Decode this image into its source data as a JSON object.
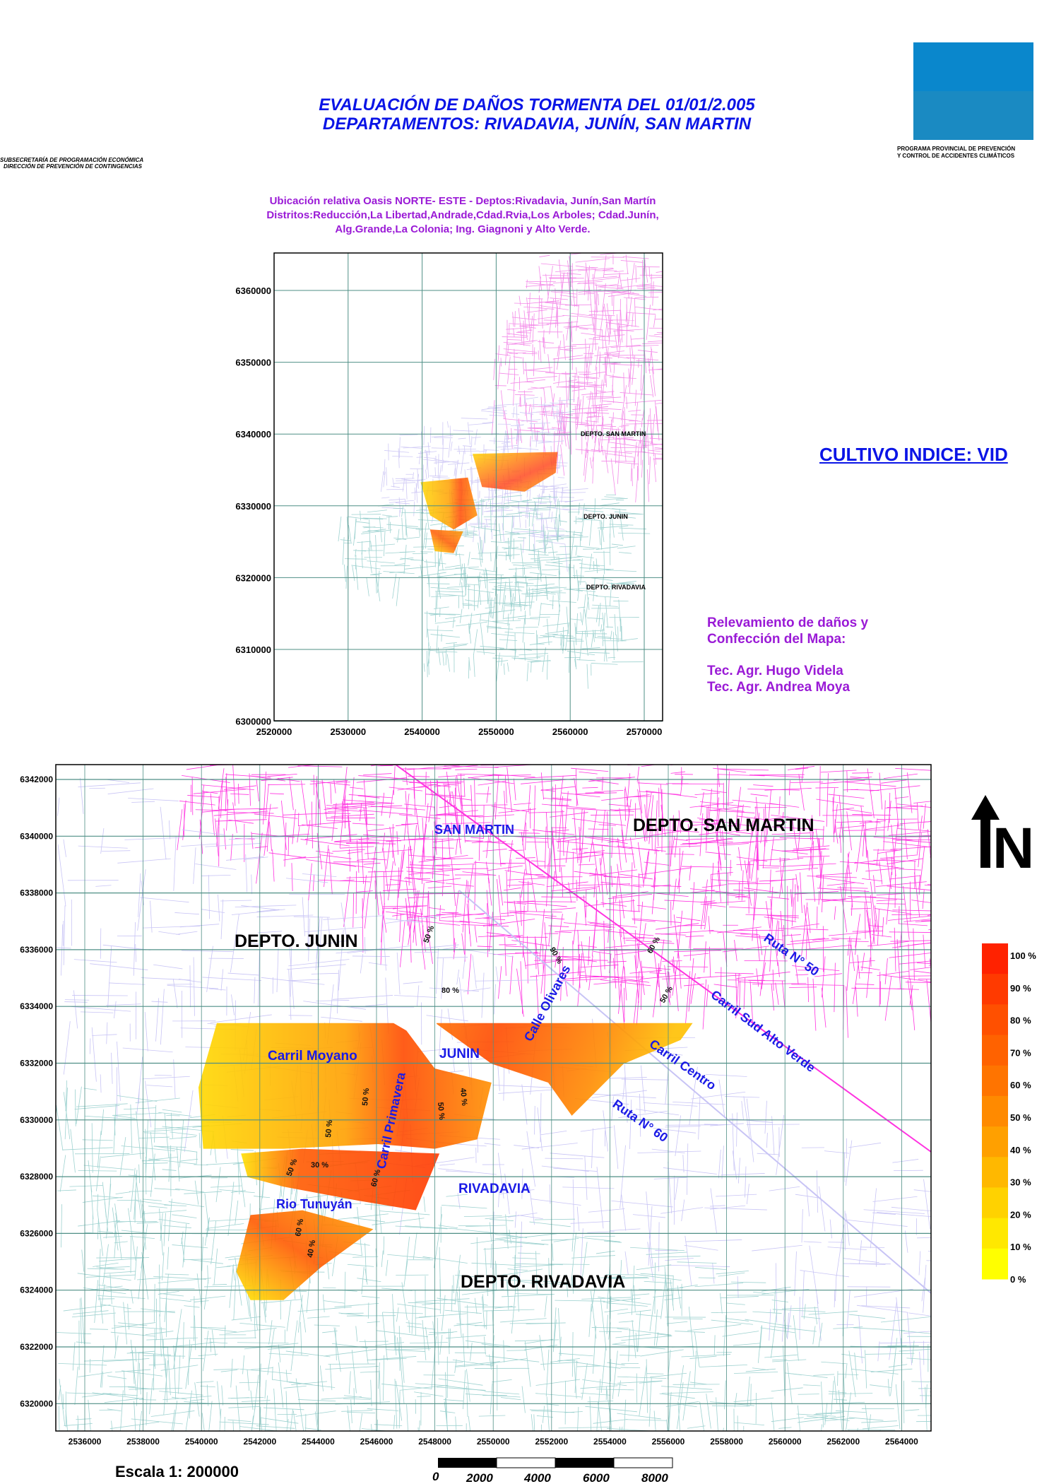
{
  "header": {
    "title_line1": "EVALUACIÓN DE DAÑOS TORMENTA DEL 01/01/2.005",
    "title_line2": "DEPARTAMENTOS: RIVADAVIA,  JUNÍN,  SAN MARTIN",
    "left_org_line1": "SUBSECRETARÍA DE PROGRAMACIÓN ECONÓMICA",
    "left_org_line2": "DIRECCIÓN DE PREVENCIÓN DE CONTINGENCIAS",
    "right_org_line1": "PROGRAMA PROVINCIAL DE PREVENCIÓN",
    "right_org_line2": "Y CONTROL DE ACCIDENTES CLIMÁTICOS",
    "logo_color": "#0a87cc"
  },
  "location_map": {
    "subtitle_lines": [
      "Ubicación relativa Oasis NORTE- ESTE - Deptos:Rivadavia, Junín,San Martín",
      "Distritos:Reducción,La Libertad,Andrade,Cdad.Rvia,Los Arboles; Cdad.Junín,",
      "Alg.Grande,La Colonia; Ing. Giagnoni y Alto Verde."
    ],
    "y_ticks": [
      "6360000",
      "6350000",
      "6340000",
      "6330000",
      "6320000",
      "6310000",
      "6300000"
    ],
    "x_ticks": [
      "2520000",
      "2530000",
      "2540000",
      "2550000",
      "2560000",
      "2570000"
    ],
    "labels": [
      "DEPTO. SAN MARTIN",
      "DEPTO.  JUNIN",
      "DEPTO. RIVADAVIA"
    ]
  },
  "crop": {
    "label": "CULTIVO INDICE:   VID"
  },
  "credits": {
    "line1": "Relevamiento de daños y",
    "line2": "Confección del Mapa:",
    "author1": "Tec. Agr. Hugo Videla",
    "author2": "Tec. Agr. Andrea Moya"
  },
  "main_map": {
    "y_ticks": [
      "6342000",
      "6340000",
      "6338000",
      "6336000",
      "6334000",
      "6332000",
      "6330000",
      "6328000",
      "6326000",
      "6324000",
      "6322000",
      "6320000"
    ],
    "x_ticks": [
      "2536000",
      "2538000",
      "2540000",
      "2542000",
      "2544000",
      "2546000",
      "2548000",
      "2550000",
      "2552000",
      "2554000",
      "2556000",
      "2558000",
      "2560000",
      "2562000",
      "2564000"
    ],
    "dept_labels": [
      "DEPTO.  SAN MARTIN",
      "DEPTO. JUNIN",
      "DEPTO.  RIVADAVIA"
    ],
    "town_labels": [
      "SAN  MARTIN",
      "JUNIN",
      "RIVADAVIA"
    ],
    "road_labels": [
      "Ruta N° 50",
      "Carril Sud Alto Verde",
      "Carril Centro",
      "Ruta N° 60",
      "Carril Moyano",
      "Calle Olivares",
      "Carril Primavera",
      "Rio Tunuyán"
    ],
    "damage_labels": [
      "50 %",
      "90 %",
      "60 %",
      "80 %",
      "50 %",
      "50 %",
      "50 %",
      "50 %",
      "40 %",
      "50 %",
      "30 %",
      "60 %",
      "60 %",
      "40 %"
    ],
    "north_label": "N",
    "colors": {
      "san_martin": "#ff33e0",
      "junin": "#c8c4f5",
      "rivadavia": "#9ed2d0",
      "grid": "#4f8f86"
    }
  },
  "legend": {
    "labels": [
      "100 %",
      "90 %",
      "80 %",
      "70 %",
      "60 %",
      "50 %",
      "40 %",
      "30 %",
      "20 %",
      "10 %",
      "0 %"
    ],
    "colors": [
      "#ff2200",
      "#ff3a00",
      "#ff5000",
      "#ff6200",
      "#ff7400",
      "#ff8a00",
      "#ffa000",
      "#ffb800",
      "#ffd200",
      "#ffe800",
      "#ffff00"
    ]
  },
  "scale": {
    "label": "Escala 1: 200000",
    "bar_labels": [
      "0",
      "2000",
      "4000",
      "6000",
      "8000"
    ]
  }
}
